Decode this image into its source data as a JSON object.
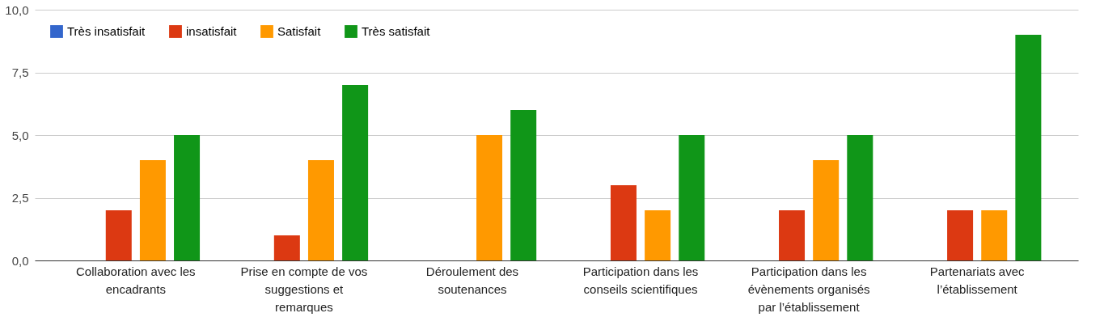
{
  "chart_data": {
    "type": "bar",
    "categories": [
      "Collaboration avec les encadrants",
      "Prise en compte de vos suggestions et remarques",
      "Déroulement des soutenances",
      "Participation dans les conseils scientifiques",
      "Participation dans les évènements organisés par l’établissement",
      "Partenariats avec l’établissement"
    ],
    "series": [
      {
        "name": "Très insatisfait",
        "color": "#3366cc",
        "values": [
          0,
          0,
          0,
          0,
          0,
          0
        ]
      },
      {
        "name": "insatisfait",
        "color": "#dc3912",
        "values": [
          2,
          1,
          0,
          3,
          2,
          2
        ]
      },
      {
        "name": "Satisfait",
        "color": "#ff9900",
        "values": [
          4,
          4,
          5,
          2,
          4,
          2
        ]
      },
      {
        "name": "Très satisfait",
        "color": "#109618",
        "values": [
          5,
          7,
          6,
          5,
          5,
          9
        ]
      }
    ],
    "ylim": [
      0,
      10
    ],
    "yticks": [
      {
        "value": 0,
        "label": "0,0"
      },
      {
        "value": 2.5,
        "label": "2,5"
      },
      {
        "value": 5,
        "label": "5,0"
      },
      {
        "value": 7.5,
        "label": "7,5"
      },
      {
        "value": 10,
        "label": "10,0"
      }
    ],
    "grid": "y",
    "legend": "top left"
  }
}
